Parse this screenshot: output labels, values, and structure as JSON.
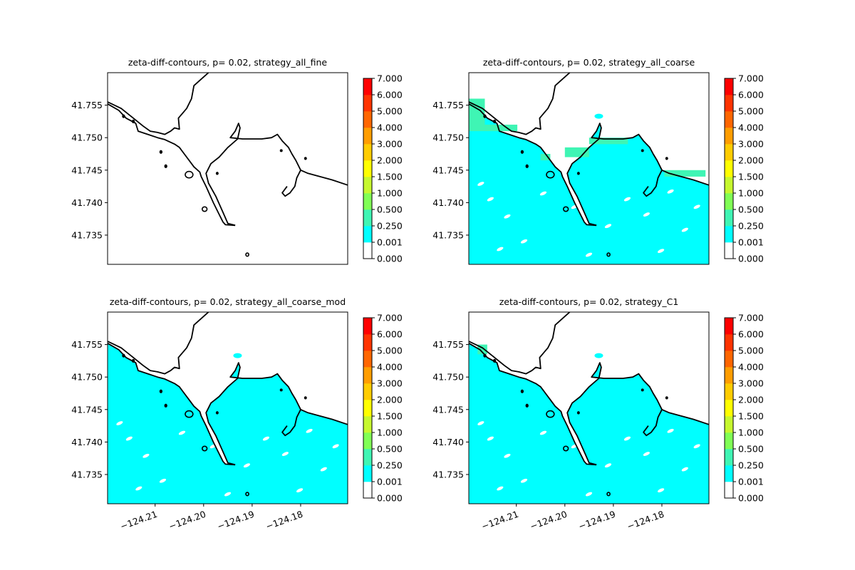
{
  "chart_data": [
    {
      "type": "heatmap",
      "title": "zeta-diff-contours, p= 0.02, strategy_all_fine",
      "xlabel": "",
      "ylabel": "",
      "xlim": [
        -124.2198,
        -124.1703
      ],
      "ylim": [
        41.7305,
        41.76
      ],
      "xticks": [],
      "xtick_labels": [],
      "yticks": [
        41.735,
        41.74,
        41.745,
        41.75,
        41.755
      ],
      "ytick_labels": [
        "41.735",
        "41.740",
        "41.745",
        "41.750",
        "41.755"
      ],
      "color_levels": [
        0.0,
        0.001,
        0.25,
        0.5,
        1.0,
        1.5,
        2.0,
        3.0,
        4.0,
        5.0,
        6.0,
        7.0
      ],
      "colorbar_labels": [
        "0.000",
        "0.001",
        "0.250",
        "0.500",
        "1.000",
        "1.500",
        "2.000",
        "3.000",
        "4.000",
        "5.000",
        "6.000",
        "7.000"
      ],
      "colorbar_colors": [
        "#ffffff",
        "#00ffff",
        "#3ff5b4",
        "#80ff55",
        "#c6f82e",
        "#ffff00",
        "#ffcc00",
        "#ff9d00",
        "#ff6600",
        "#ff3300",
        "#ff0000"
      ],
      "water_fill_level": null,
      "patches": []
    },
    {
      "type": "heatmap",
      "title": "zeta-diff-contours, p= 0.02, strategy_all_coarse",
      "xlabel": "",
      "ylabel": "",
      "xlim": [
        -124.2198,
        -124.1703
      ],
      "ylim": [
        41.7305,
        41.76
      ],
      "xticks": [],
      "xtick_labels": [],
      "yticks": [
        41.735,
        41.74,
        41.745,
        41.75,
        41.755
      ],
      "ytick_labels": [
        "41.735",
        "41.740",
        "41.745",
        "41.750",
        "41.755"
      ],
      "color_levels": [
        0.0,
        0.001,
        0.25,
        0.5,
        1.0,
        1.5,
        2.0,
        3.0,
        4.0,
        5.0,
        6.0,
        7.0
      ],
      "colorbar_labels": [
        "0.000",
        "0.001",
        "0.250",
        "0.500",
        "1.000",
        "1.500",
        "2.000",
        "3.000",
        "4.000",
        "5.000",
        "6.000",
        "7.000"
      ],
      "colorbar_colors": [
        "#ffffff",
        "#00ffff",
        "#3ff5b4",
        "#80ff55",
        "#c6f82e",
        "#ffff00",
        "#ffcc00",
        "#ff9d00",
        "#ff6600",
        "#ff3300",
        "#ff0000"
      ],
      "water_fill_level": "0.001-0.250",
      "patches": [
        {
          "level": "0.250-0.500",
          "lon": [
            -124.2198,
            -124.2165
          ],
          "lat": [
            41.751,
            41.756
          ]
        },
        {
          "level": "0.250-0.500",
          "lon": [
            -124.2165,
            -124.2098
          ],
          "lat": [
            41.751,
            41.752
          ]
        },
        {
          "level": "0.250-0.500",
          "lon": [
            -124.205,
            -124.203
          ],
          "lat": [
            41.7465,
            41.7475
          ]
        },
        {
          "level": "0.250-0.500",
          "lon": [
            -124.2,
            -124.195
          ],
          "lat": [
            41.747,
            41.7485
          ]
        },
        {
          "level": "0.250-0.500",
          "lon": [
            -124.195,
            -124.187
          ],
          "lat": [
            41.749,
            41.75
          ]
        },
        {
          "level": "0.250-0.500",
          "lon": [
            -124.1795,
            -124.171
          ],
          "lat": [
            41.744,
            41.745
          ]
        }
      ]
    },
    {
      "type": "heatmap",
      "title": "zeta-diff-contours, p= 0.02, strategy_all_coarse_mod",
      "xlabel": "",
      "ylabel": "",
      "xlim": [
        -124.2198,
        -124.1703
      ],
      "ylim": [
        41.7305,
        41.76
      ],
      "xticks": [
        -124.21,
        -124.2,
        -124.19,
        -124.18
      ],
      "xtick_labels": [
        "−124.21",
        "−124.20",
        "−124.19",
        "−124.18"
      ],
      "yticks": [
        41.735,
        41.74,
        41.745,
        41.75,
        41.755
      ],
      "ytick_labels": [
        "41.735",
        "41.740",
        "41.745",
        "41.750",
        "41.755"
      ],
      "color_levels": [
        0.0,
        0.001,
        0.25,
        0.5,
        1.0,
        1.5,
        2.0,
        3.0,
        4.0,
        5.0,
        6.0,
        7.0
      ],
      "colorbar_labels": [
        "0.000",
        "0.001",
        "0.250",
        "0.500",
        "1.000",
        "1.500",
        "2.000",
        "3.000",
        "4.000",
        "5.000",
        "6.000",
        "7.000"
      ],
      "colorbar_colors": [
        "#ffffff",
        "#00ffff",
        "#3ff5b4",
        "#80ff55",
        "#c6f82e",
        "#ffff00",
        "#ffcc00",
        "#ff9d00",
        "#ff6600",
        "#ff3300",
        "#ff0000"
      ],
      "water_fill_level": "0.001-0.250",
      "patches": []
    },
    {
      "type": "heatmap",
      "title": "zeta-diff-contours, p= 0.02, strategy_C1",
      "xlabel": "",
      "ylabel": "",
      "xlim": [
        -124.2198,
        -124.1703
      ],
      "ylim": [
        41.7305,
        41.76
      ],
      "xticks": [
        -124.21,
        -124.2,
        -124.19,
        -124.18
      ],
      "xtick_labels": [
        "−124.21",
        "−124.20",
        "−124.19",
        "−124.18"
      ],
      "yticks": [
        41.735,
        41.74,
        41.745,
        41.75,
        41.755
      ],
      "ytick_labels": [
        "41.735",
        "41.740",
        "41.745",
        "41.750",
        "41.755"
      ],
      "color_levels": [
        0.0,
        0.001,
        0.25,
        0.5,
        1.0,
        1.5,
        2.0,
        3.0,
        4.0,
        5.0,
        6.0,
        7.0
      ],
      "colorbar_labels": [
        "0.000",
        "0.001",
        "0.250",
        "0.500",
        "1.000",
        "1.500",
        "2.000",
        "3.000",
        "4.000",
        "5.000",
        "6.000",
        "7.000"
      ],
      "colorbar_colors": [
        "#ffffff",
        "#00ffff",
        "#3ff5b4",
        "#80ff55",
        "#c6f82e",
        "#ffff00",
        "#ffcc00",
        "#ff9d00",
        "#ff6600",
        "#ff3300",
        "#ff0000"
      ],
      "water_fill_level": "0.001-0.250",
      "patches": [
        {
          "level": "0.250-0.500",
          "lon": [
            -124.218,
            -124.216
          ],
          "lat": [
            41.7535,
            41.755
          ]
        }
      ]
    }
  ],
  "coastline": {
    "land_north": [
      [
        -124.2198,
        41.7555
      ],
      [
        -124.217,
        41.7545
      ],
      [
        -124.2145,
        41.753
      ],
      [
        -124.2125,
        41.7518
      ],
      [
        -124.211,
        41.751
      ],
      [
        -124.2095,
        41.7508
      ],
      [
        -124.208,
        41.7505
      ],
      [
        -124.2068,
        41.751
      ],
      [
        -124.206,
        41.7515
      ],
      [
        -124.205,
        41.7513
      ],
      [
        -124.2052,
        41.753
      ],
      [
        -124.2035,
        41.7545
      ],
      [
        -124.2025,
        41.756
      ],
      [
        -124.202,
        41.758
      ],
      [
        -124.2005,
        41.759
      ],
      [
        -124.199,
        41.76
      ]
    ],
    "main_coast": [
      [
        -124.2198,
        41.7552
      ],
      [
        -124.2175,
        41.7542
      ],
      [
        -124.216,
        41.753
      ],
      [
        -124.214,
        41.7522
      ],
      [
        -124.2135,
        41.751
      ],
      [
        -124.2115,
        41.7505
      ],
      [
        -124.2095,
        41.75
      ],
      [
        -124.208,
        41.7497
      ],
      [
        -124.206,
        41.749
      ],
      [
        -124.205,
        41.7485
      ],
      [
        -124.204,
        41.7475
      ],
      [
        -124.203,
        41.7465
      ],
      [
        -124.202,
        41.7455
      ],
      [
        -124.2008,
        41.7447
      ],
      [
        -124.2005,
        41.744
      ],
      [
        -124.1995,
        41.7425
      ],
      [
        -124.198,
        41.74
      ],
      [
        -124.197,
        41.7385
      ],
      [
        -124.196,
        41.737
      ],
      [
        -124.1955,
        41.7366
      ],
      [
        -124.1935,
        41.7365
      ]
    ],
    "spit": [
      [
        -124.1935,
        41.7365
      ],
      [
        -124.195,
        41.7368
      ],
      [
        -124.196,
        41.7385
      ],
      [
        -124.1975,
        41.741
      ],
      [
        -124.199,
        41.743
      ],
      [
        -124.1995,
        41.7445
      ],
      [
        -124.1985,
        41.746
      ],
      [
        -124.1968,
        41.747
      ],
      [
        -124.195,
        41.7485
      ],
      [
        -124.193,
        41.7498
      ],
      [
        -124.1925,
        41.7515
      ],
      [
        -124.1928,
        41.7522
      ],
      [
        -124.1935,
        41.751
      ],
      [
        -124.1945,
        41.75
      ],
      [
        -124.192,
        41.7498
      ],
      [
        -124.188,
        41.7498
      ],
      [
        -124.186,
        41.75
      ],
      [
        -124.1848,
        41.7505
      ],
      [
        -124.1838,
        41.7495
      ],
      [
        -124.1825,
        41.7485
      ],
      [
        -124.1818,
        41.7475
      ],
      [
        -124.181,
        41.7465
      ],
      [
        -124.18,
        41.745
      ],
      [
        -124.1785,
        41.7445
      ],
      [
        -124.176,
        41.744
      ],
      [
        -124.1735,
        41.7435
      ],
      [
        -124.1703,
        41.7427
      ]
    ],
    "harbor_inner": [
      [
        -124.18,
        41.745
      ],
      [
        -124.1808,
        41.7438
      ],
      [
        -124.1812,
        41.7425
      ],
      [
        -124.1822,
        41.7415
      ],
      [
        -124.1832,
        41.741
      ],
      [
        -124.1838,
        41.7415
      ],
      [
        -124.1828,
        41.7425
      ]
    ],
    "islands": [
      {
        "lon": -124.203,
        "lat": 41.7443,
        "r": [
          0.0008,
          0.0005
        ]
      },
      {
        "lon": -124.1998,
        "lat": 41.739,
        "r": [
          0.0005,
          0.00035
        ]
      },
      {
        "lon": -124.191,
        "lat": 41.732,
        "r": [
          0.0003,
          0.00025
        ]
      },
      {
        "lon": -124.2165,
        "lat": 41.7533,
        "r": [
          0.0002,
          0.0002
        ]
      },
      {
        "lon": -124.2145,
        "lat": 41.7525,
        "r": [
          0.0002,
          0.0002
        ]
      },
      {
        "lon": -124.2088,
        "lat": 41.7478,
        "r": [
          0.0002,
          0.0002
        ]
      },
      {
        "lon": -124.2078,
        "lat": 41.7456,
        "r": [
          0.0002,
          0.0002
        ]
      },
      {
        "lon": -124.1972,
        "lat": 41.7445,
        "r": [
          0.00015,
          0.00015
        ]
      },
      {
        "lon": -124.184,
        "lat": 41.748,
        "r": [
          0.00012,
          0.00012
        ]
      },
      {
        "lon": -124.179,
        "lat": 41.7468,
        "r": [
          0.00015,
          0.00015
        ]
      }
    ]
  }
}
